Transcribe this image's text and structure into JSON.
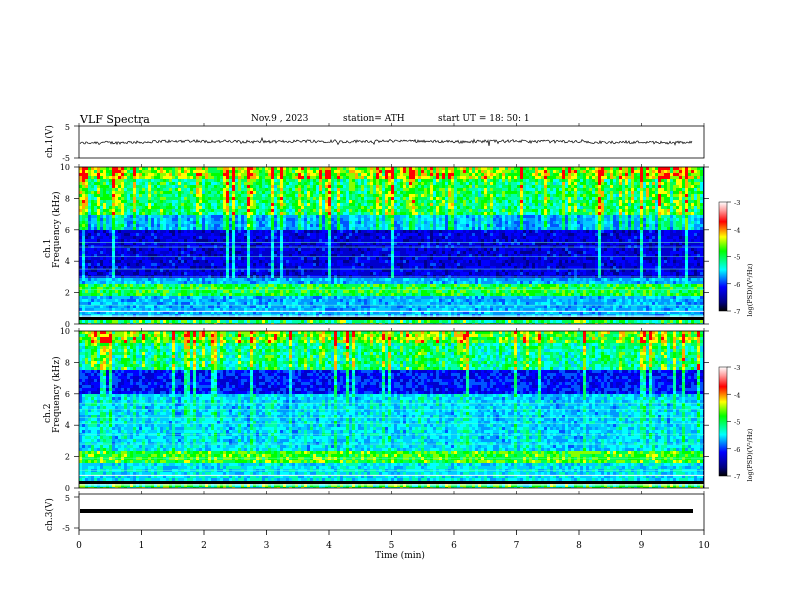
{
  "header": {
    "title": "VLF  Spectra",
    "date": "Nov.9  , 2023",
    "station": "station= ATH",
    "start": "start  UT  =   18: 50: 1"
  },
  "chart_data": [
    {
      "type": "line",
      "panel": "ch1-waveform",
      "ylabel": "ch.1(V)",
      "ylim": [
        -5,
        5
      ],
      "yticks": [
        "5",
        "-5"
      ],
      "xlim": [
        0,
        10
      ],
      "series": [
        {
          "values_approx": "noisy trace centered near -0.5 V with amplitude about ±1 V"
        }
      ]
    },
    {
      "type": "heatmap",
      "panel": "ch1-spectrogram",
      "ylabel": "ch.1\nFrequency (kHz)",
      "ylabel_channel": "ch.1",
      "ylabel_freq": "Frequency (kHz)",
      "yticks": [
        "0",
        "2",
        "4",
        "6",
        "8",
        "10"
      ],
      "ylim": [
        0,
        10
      ],
      "xlim": [
        0,
        10
      ],
      "colorbar": {
        "label": "log(PSD)(V²/Hz)",
        "ticks": [
          "-3",
          "-4",
          "-5",
          "-6",
          "-7"
        ],
        "range": [
          -7,
          -3
        ]
      },
      "features": {
        "intense_band_khz": 2.2,
        "quiet_region_khz": [
          3,
          6
        ],
        "active_top_khz": [
          7,
          10
        ]
      }
    },
    {
      "type": "heatmap",
      "panel": "ch2-spectrogram",
      "ylabel": "ch.2\nFrequency (kHz)",
      "ylabel_channel": "ch.2",
      "ylabel_freq": "Frequency (kHz)",
      "yticks": [
        "0",
        "2",
        "4",
        "6",
        "8",
        "10"
      ],
      "ylim": [
        0,
        10
      ],
      "xlim": [
        0,
        10
      ],
      "colorbar": {
        "label": "log(PSD)(V²/Hz)",
        "ticks": [
          "-3",
          "-4",
          "-5",
          "-6",
          "-7"
        ],
        "range": [
          -7,
          -3
        ]
      },
      "features": {
        "intense_band_khz": 2.0,
        "quiet_region_khz": [
          6,
          7.5
        ],
        "active_top_khz": [
          7.5,
          10
        ]
      }
    },
    {
      "type": "line",
      "panel": "ch3-waveform",
      "ylabel": "ch.3(V)",
      "ylim": [
        -5,
        5
      ],
      "yticks": [
        "5",
        "-5"
      ],
      "xlim": [
        0,
        10
      ],
      "series": [
        {
          "values_approx": "flat thick line near -1.5 V"
        }
      ]
    }
  ],
  "xaxis": {
    "label": "Time  (min)",
    "ticks": [
      "0",
      "1",
      "2",
      "3",
      "4",
      "5",
      "6",
      "7",
      "8",
      "9",
      "10"
    ]
  },
  "colors": {
    "deep_blue": "#00008b",
    "blue": "#0000ff",
    "cyan": "#00ffff",
    "green": "#00ff00",
    "yellow": "#ffff00",
    "red": "#ff0000",
    "white": "#ffffff"
  }
}
